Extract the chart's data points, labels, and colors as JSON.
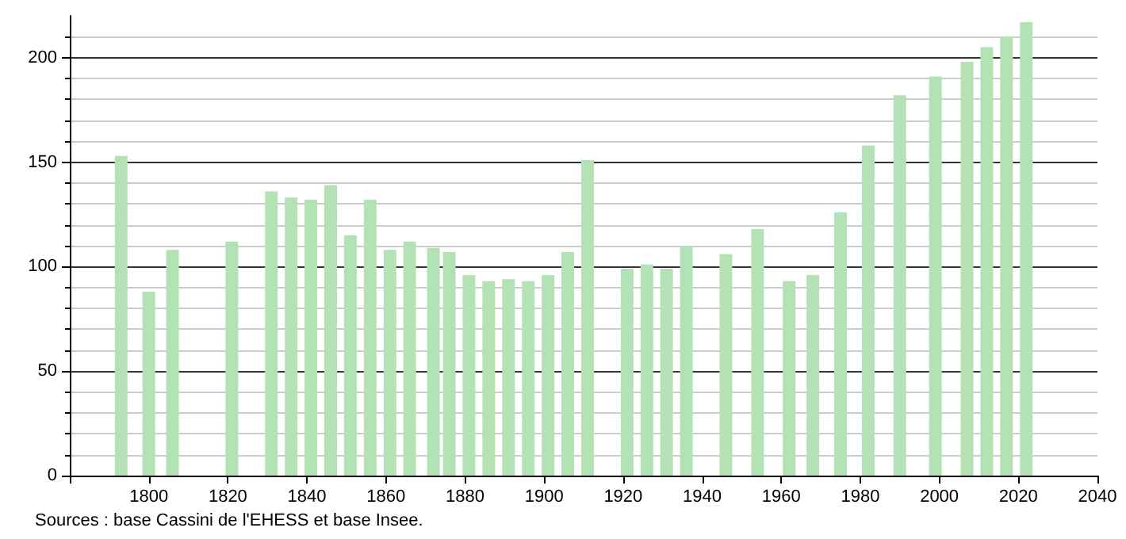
{
  "chart_data": {
    "type": "bar",
    "x": [
      1793,
      1800,
      1806,
      1821,
      1831,
      1836,
      1841,
      1846,
      1851,
      1856,
      1861,
      1866,
      1872,
      1876,
      1881,
      1886,
      1891,
      1896,
      1901,
      1906,
      1911,
      1921,
      1926,
      1931,
      1936,
      1946,
      1954,
      1962,
      1968,
      1975,
      1982,
      1990,
      1999,
      2007,
      2012,
      2017,
      2022
    ],
    "values": [
      153,
      88,
      108,
      112,
      136,
      133,
      132,
      139,
      115,
      132,
      108,
      112,
      109,
      107,
      96,
      93,
      94,
      93,
      96,
      107,
      151,
      99,
      101,
      99,
      110,
      106,
      118,
      93,
      96,
      126,
      158,
      182,
      191,
      198,
      205,
      210,
      217
    ],
    "color": "#b3e3b5",
    "xlim": [
      1780,
      2040
    ],
    "xticks": [
      {
        "value": 1780,
        "label": null
      },
      1800,
      1820,
      1840,
      1860,
      1880,
      1900,
      1920,
      1940,
      1960,
      1980,
      2000,
      2020,
      2040
    ],
    "ylim": [
      0,
      220
    ],
    "yticks": [
      0,
      50,
      100,
      150,
      200
    ],
    "grid": "y",
    "annotations": [
      "Sources : base Cassini de l'EHESS et base Insee."
    ]
  }
}
